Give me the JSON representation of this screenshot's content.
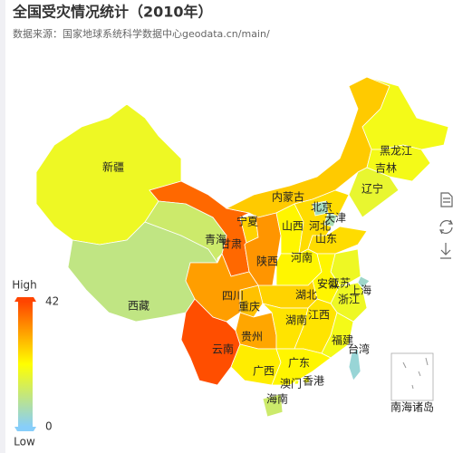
{
  "title": "全国受灾情况统计（2010年）",
  "subtitle": "数据来源：国家地球系统科学数据中心geodata.cn/main/",
  "visual_map": {
    "min": 0,
    "max": 42,
    "high_text": "High",
    "low_text": "Low",
    "colors": [
      "#87cefa",
      "#ffff00",
      "#ff4500"
    ]
  },
  "inset_label": "南海诸岛",
  "regions": [
    {
      "name": "新疆",
      "value": 18
    },
    {
      "name": "西藏",
      "value": 10
    },
    {
      "name": "甘肃",
      "value": 38
    },
    {
      "name": "青海",
      "value": 12
    },
    {
      "name": "内蒙古",
      "value": 27
    },
    {
      "name": "黑龙江",
      "value": 19
    },
    {
      "name": "吉林",
      "value": 19
    },
    {
      "name": "辽宁",
      "value": 17
    },
    {
      "name": "宁夏",
      "value": 26
    },
    {
      "name": "陕西",
      "value": 33
    },
    {
      "name": "山西",
      "value": 22
    },
    {
      "name": "河北",
      "value": 25
    },
    {
      "name": "北京",
      "value": 5
    },
    {
      "name": "天津",
      "value": 6
    },
    {
      "name": "山东",
      "value": 25
    },
    {
      "name": "河南",
      "value": 22
    },
    {
      "name": "江苏",
      "value": 18
    },
    {
      "name": "安徽",
      "value": 22
    },
    {
      "name": "上海",
      "value": 4
    },
    {
      "name": "浙江",
      "value": 18
    },
    {
      "name": "湖北",
      "value": 26
    },
    {
      "name": "重庆",
      "value": 28
    },
    {
      "name": "四川",
      "value": 32
    },
    {
      "name": "云南",
      "value": 41
    },
    {
      "name": "贵州",
      "value": 31
    },
    {
      "name": "湖南",
      "value": 24
    },
    {
      "name": "江西",
      "value": 24
    },
    {
      "name": "福建",
      "value": 19
    },
    {
      "name": "广西",
      "value": 23
    },
    {
      "name": "广东",
      "value": 22
    },
    {
      "name": "海南",
      "value": 12
    },
    {
      "name": "台湾",
      "value": 3
    },
    {
      "name": "香港",
      "value": 20
    },
    {
      "name": "澳门",
      "value": 20
    }
  ]
}
